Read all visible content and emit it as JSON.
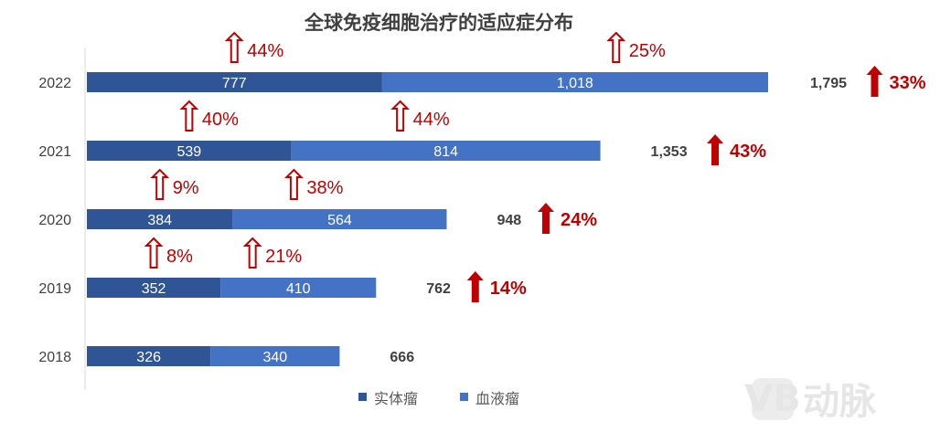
{
  "chart_data": {
    "type": "bar",
    "orientation": "horizontal",
    "stacked": true,
    "title": "全球免疫细胞治疗的适应症分布",
    "categories": [
      "2022",
      "2021",
      "2020",
      "2019",
      "2018"
    ],
    "series": [
      {
        "name": "实体瘤",
        "color": "#2f5597",
        "values": [
          777,
          539,
          384,
          352,
          326
        ],
        "labels": [
          "777",
          "539",
          "384",
          "352",
          "326"
        ]
      },
      {
        "name": "血液瘤",
        "color": "#4472c4",
        "values": [
          1018,
          814,
          564,
          410,
          340
        ],
        "labels": [
          "1,018",
          "814",
          "564",
          "410",
          "340"
        ]
      }
    ],
    "totals": [
      "1,795",
      "1,353",
      "948",
      "762",
      "666"
    ],
    "total_growth": [
      "33%",
      "43%",
      "24%",
      "14%",
      null
    ],
    "segment_growth": [
      {
        "实体瘤": "44%",
        "血液瘤": "25%"
      },
      {
        "实体瘤": "40%",
        "血液瘤": "44%"
      },
      {
        "实体瘤": "9%",
        "血液瘤": "38%"
      },
      {
        "实体瘤": "8%",
        "血液瘤": "21%"
      },
      null
    ],
    "xlim": [
      0,
      1850
    ],
    "grid": false,
    "legend_position": "bottom",
    "accent_color": "#c00000"
  },
  "watermark": {
    "logo_text": "VB",
    "text": "动脉"
  }
}
